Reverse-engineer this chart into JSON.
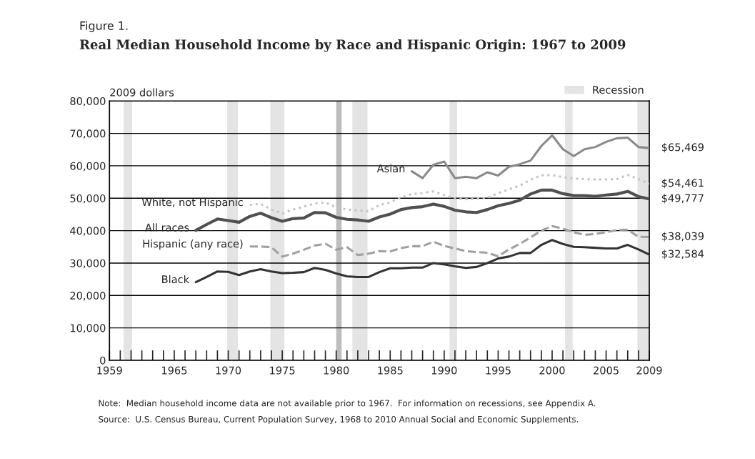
{
  "chart_data": {
    "type": "line",
    "title": "Figure 1.",
    "subtitle": "Real Median Household Income by Race and Hispanic Origin: 1967 to 2009",
    "ylabel": "2009 dollars",
    "xlim": [
      1959,
      2009
    ],
    "ylim": [
      0,
      80000
    ],
    "xticks": [
      1959,
      {
        "value": 1960,
        "label": null
      },
      {
        "value": 1961,
        "label": null
      },
      {
        "value": 1962,
        "label": null
      },
      {
        "value": 1963,
        "label": null
      },
      {
        "value": 1964,
        "label": null
      },
      1965,
      {
        "value": 1966,
        "label": null
      },
      {
        "value": 1967,
        "label": null
      },
      {
        "value": 1968,
        "label": null
      },
      {
        "value": 1969,
        "label": null
      },
      1970,
      {
        "value": 1971,
        "label": null
      },
      {
        "value": 1972,
        "label": null
      },
      {
        "value": 1973,
        "label": null
      },
      {
        "value": 1974,
        "label": null
      },
      1975,
      {
        "value": 1976,
        "label": null
      },
      {
        "value": 1977,
        "label": null
      },
      {
        "value": 1978,
        "label": null
      },
      {
        "value": 1979,
        "label": null
      },
      1980,
      {
        "value": 1981,
        "label": null
      },
      {
        "value": 1982,
        "label": null
      },
      {
        "value": 1983,
        "label": null
      },
      {
        "value": 1984,
        "label": null
      },
      1985,
      {
        "value": 1986,
        "label": null
      },
      {
        "value": 1987,
        "label": null
      },
      {
        "value": 1988,
        "label": null
      },
      {
        "value": 1989,
        "label": null
      },
      1990,
      {
        "value": 1991,
        "label": null
      },
      {
        "value": 1992,
        "label": null
      },
      {
        "value": 1993,
        "label": null
      },
      {
        "value": 1994,
        "label": null
      },
      1995,
      {
        "value": 1996,
        "label": null
      },
      {
        "value": 1997,
        "label": null
      },
      {
        "value": 1998,
        "label": null
      },
      {
        "value": 1999,
        "label": null
      },
      2000,
      {
        "value": 2001,
        "label": null
      },
      {
        "value": 2002,
        "label": null
      },
      {
        "value": 2003,
        "label": null
      },
      {
        "value": 2004,
        "label": null
      },
      2005,
      {
        "value": 2006,
        "label": null
      },
      {
        "value": 2007,
        "label": null
      },
      {
        "value": 2008,
        "label": null
      },
      2009
    ],
    "yticks": [
      {
        "value": 0,
        "label": "0"
      },
      {
        "value": 10000,
        "label": "10,000"
      },
      {
        "value": 20000,
        "label": "20,000"
      },
      {
        "value": 30000,
        "label": "30,000"
      },
      {
        "value": 40000,
        "label": "40,000"
      },
      {
        "value": 50000,
        "label": "50,000"
      },
      {
        "value": 60000,
        "label": "60,000"
      },
      {
        "value": 70000,
        "label": "70,000"
      },
      {
        "value": 80000,
        "label": "80,000"
      }
    ],
    "grid": "y",
    "legend": "top right",
    "bands": [
      {
        "axis": "x",
        "from": 1960.3,
        "to": 1961.1,
        "label": "Recession",
        "color": "#e4e4e4"
      },
      {
        "axis": "x",
        "from": 1969.9,
        "to": 1970.9,
        "color": "#e4e4e4"
      },
      {
        "axis": "x",
        "from": 1973.9,
        "to": 1975.2,
        "color": "#e4e4e4"
      },
      {
        "axis": "x",
        "from": 1980.0,
        "to": 1980.5,
        "color": "#bdbdbd"
      },
      {
        "axis": "x",
        "from": 1981.5,
        "to": 1982.9,
        "color": "#e4e4e4"
      },
      {
        "axis": "x",
        "from": 1990.5,
        "to": 1991.2,
        "color": "#e4e4e4"
      },
      {
        "axis": "x",
        "from": 2001.2,
        "to": 2001.9,
        "color": "#e4e4e4"
      },
      {
        "axis": "x",
        "from": 2007.9,
        "to": 2009,
        "color": "#e4e4e4"
      }
    ],
    "series": [
      {
        "name": "Asian",
        "color": "#8a8a8a",
        "line_style": "solid",
        "x": [
          1987,
          1988,
          1989,
          1990,
          1991,
          1992,
          1993,
          1994,
          1995,
          1996,
          1997,
          1998,
          1999,
          2000,
          2001,
          2002,
          2003,
          2004,
          2005,
          2006,
          2007,
          2008,
          2009
        ],
        "values": [
          58300,
          56200,
          60300,
          61300,
          56200,
          56600,
          56200,
          58000,
          57000,
          59700,
          60500,
          61600,
          66100,
          69400,
          65100,
          63000,
          65100,
          65800,
          67400,
          68500,
          68700,
          65800,
          65469
        ],
        "value_labels": [
          null,
          null,
          null,
          null,
          null,
          null,
          null,
          null,
          null,
          null,
          null,
          null,
          null,
          null,
          null,
          null,
          null,
          null,
          null,
          null,
          null,
          null,
          "$65,469"
        ]
      },
      {
        "name": "White, not Hispanic",
        "color": "#c4c4c4",
        "line_style": "dotted",
        "x": [
          1972,
          1973,
          1974,
          1975,
          1976,
          1977,
          1978,
          1979,
          1980,
          1981,
          1982,
          1983,
          1984,
          1985,
          1986,
          1987,
          1988,
          1989,
          1990,
          1991,
          1992,
          1993,
          1994,
          1995,
          1996,
          1997,
          1998,
          1999,
          2000,
          2001,
          2002,
          2003,
          2004,
          2005,
          2006,
          2007,
          2008,
          2009
        ],
        "values": [
          47900,
          48300,
          46500,
          45300,
          46500,
          47400,
          48400,
          48700,
          47200,
          46500,
          46200,
          46000,
          47900,
          48700,
          50300,
          51300,
          51600,
          52100,
          51000,
          49900,
          49700,
          49900,
          50100,
          51600,
          52700,
          53900,
          55700,
          57100,
          57100,
          56500,
          56100,
          55900,
          55800,
          55800,
          55900,
          57200,
          55900,
          54461
        ],
        "value_labels": [
          null,
          null,
          null,
          null,
          null,
          null,
          null,
          null,
          null,
          null,
          null,
          null,
          null,
          null,
          null,
          null,
          null,
          null,
          null,
          null,
          null,
          null,
          null,
          null,
          null,
          null,
          null,
          null,
          null,
          null,
          null,
          null,
          null,
          null,
          null,
          null,
          null,
          "$54,461"
        ]
      },
      {
        "name": "All races",
        "color": "#505050",
        "line_style": "solid",
        "x": [
          1967,
          1968,
          1969,
          1970,
          1971,
          1972,
          1973,
          1974,
          1975,
          1976,
          1977,
          1978,
          1979,
          1980,
          1981,
          1982,
          1983,
          1984,
          1985,
          1986,
          1987,
          1988,
          1989,
          1990,
          1991,
          1992,
          1993,
          1994,
          1995,
          1996,
          1997,
          1998,
          1999,
          2000,
          2001,
          2002,
          2003,
          2004,
          2005,
          2006,
          2007,
          2008,
          2009
        ],
        "values": [
          40100,
          41900,
          43600,
          43100,
          42600,
          44400,
          45400,
          44000,
          42900,
          43700,
          43900,
          45600,
          45500,
          44100,
          43500,
          43300,
          42900,
          44200,
          45100,
          46500,
          47100,
          47400,
          48200,
          47500,
          46300,
          45800,
          45600,
          46500,
          47700,
          48400,
          49400,
          51300,
          52500,
          52500,
          51400,
          50800,
          50800,
          50600,
          51000,
          51300,
          52100,
          50500,
          49777
        ],
        "value_labels": [
          null,
          null,
          null,
          null,
          null,
          null,
          null,
          null,
          null,
          null,
          null,
          null,
          null,
          null,
          null,
          null,
          null,
          null,
          null,
          null,
          null,
          null,
          null,
          null,
          null,
          null,
          null,
          null,
          null,
          null,
          null,
          null,
          null,
          null,
          null,
          null,
          null,
          null,
          null,
          null,
          null,
          null,
          "$49,777"
        ]
      },
      {
        "name": "Hispanic (any race)",
        "color": "#a0a0a0",
        "line_style": "dashed",
        "x": [
          1972,
          1973,
          1974,
          1975,
          1976,
          1977,
          1978,
          1979,
          1980,
          1981,
          1982,
          1983,
          1984,
          1985,
          1986,
          1987,
          1988,
          1989,
          1990,
          1991,
          1992,
          1993,
          1994,
          1995,
          1996,
          1997,
          1998,
          1999,
          2000,
          2001,
          2002,
          2003,
          2004,
          2005,
          2006,
          2007,
          2008,
          2009
        ],
        "values": [
          35100,
          35100,
          34900,
          32000,
          32900,
          34100,
          35400,
          36000,
          34100,
          34900,
          32500,
          32900,
          33700,
          33600,
          34600,
          35200,
          35200,
          36600,
          35300,
          34500,
          33700,
          33400,
          33200,
          32100,
          34200,
          35900,
          37900,
          40000,
          41400,
          40600,
          39500,
          38700,
          39000,
          39500,
          40200,
          40300,
          38100,
          38039
        ],
        "value_labels": [
          null,
          null,
          null,
          null,
          null,
          null,
          null,
          null,
          null,
          null,
          null,
          null,
          null,
          null,
          null,
          null,
          null,
          null,
          null,
          null,
          null,
          null,
          null,
          null,
          null,
          null,
          null,
          null,
          null,
          null,
          null,
          null,
          null,
          null,
          null,
          null,
          null,
          "$38,039"
        ]
      },
      {
        "name": "Black",
        "color": "#333333",
        "line_style": "solid",
        "x": [
          1967,
          1968,
          1969,
          1970,
          1971,
          1972,
          1973,
          1974,
          1975,
          1976,
          1977,
          1978,
          1979,
          1980,
          1981,
          1982,
          1983,
          1984,
          1985,
          1986,
          1987,
          1988,
          1989,
          1990,
          1991,
          1992,
          1993,
          1994,
          1995,
          1996,
          1997,
          1998,
          1999,
          2000,
          2001,
          2002,
          2003,
          2004,
          2005,
          2006,
          2007,
          2008,
          2009
        ],
        "values": [
          24100,
          25700,
          27400,
          27300,
          26300,
          27400,
          28100,
          27400,
          26900,
          27000,
          27200,
          28500,
          27900,
          26800,
          25900,
          25700,
          25700,
          27200,
          28400,
          28400,
          28600,
          28600,
          30000,
          29600,
          29000,
          28500,
          28800,
          30000,
          31400,
          32000,
          33100,
          33100,
          35600,
          37100,
          35900,
          35000,
          34900,
          34700,
          34500,
          34500,
          35600,
          34200,
          32584
        ],
        "value_labels": [
          null,
          null,
          null,
          null,
          null,
          null,
          null,
          null,
          null,
          null,
          null,
          null,
          null,
          null,
          null,
          null,
          null,
          null,
          null,
          null,
          null,
          null,
          null,
          null,
          null,
          null,
          null,
          null,
          null,
          null,
          null,
          null,
          null,
          null,
          null,
          null,
          null,
          null,
          null,
          null,
          null,
          null,
          "$32,584"
        ]
      }
    ],
    "annotations": [
      "Note:  Median household income data are not available prior to 1967.  For information on recessions, see Appendix A.",
      "Source:  U.S. Census Bureau, Current Population Survey, 1968 to 2010 Annual Social and Economic Supplements."
    ]
  }
}
